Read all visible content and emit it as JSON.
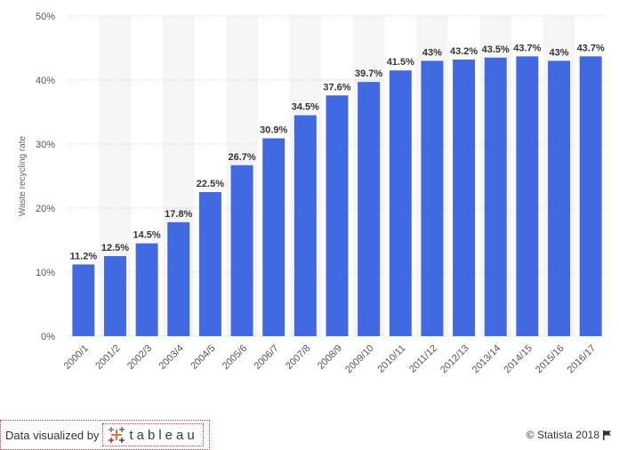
{
  "chart_data": {
    "type": "bar",
    "categories": [
      "2000/1",
      "2001/2",
      "2002/3",
      "2003/4",
      "2004/5",
      "2005/6",
      "2006/7",
      "2007/8",
      "2008/9",
      "2009/10",
      "2010/11",
      "2011/12",
      "2012/13",
      "2013/14",
      "2014/15",
      "2015/16",
      "2016/17"
    ],
    "values": [
      11.2,
      12.5,
      14.5,
      17.8,
      22.5,
      26.7,
      30.9,
      34.5,
      37.6,
      39.7,
      41.5,
      43,
      43.2,
      43.5,
      43.7,
      43,
      43.7
    ],
    "value_labels": [
      "11.2%",
      "12.5%",
      "14.5%",
      "17.8%",
      "22.5%",
      "26.7%",
      "30.9%",
      "34.5%",
      "37.6%",
      "39.7%",
      "41.5%",
      "43%",
      "43.2%",
      "43.5%",
      "43.7%",
      "43%",
      "43.7%"
    ],
    "ylabel": "Waste recycling rate",
    "xlabel": "",
    "ylim": [
      0,
      50
    ],
    "yticks": [
      0,
      10,
      20,
      30,
      40,
      50
    ],
    "ytick_labels": [
      "0%",
      "10%",
      "20%",
      "30%",
      "40%",
      "50%"
    ],
    "grid": true,
    "bar_color": "#4169e1"
  },
  "footer": {
    "data_visualized_by": "Data visualized by",
    "tableau": "tableau",
    "copyright": "© Statista 2018"
  }
}
